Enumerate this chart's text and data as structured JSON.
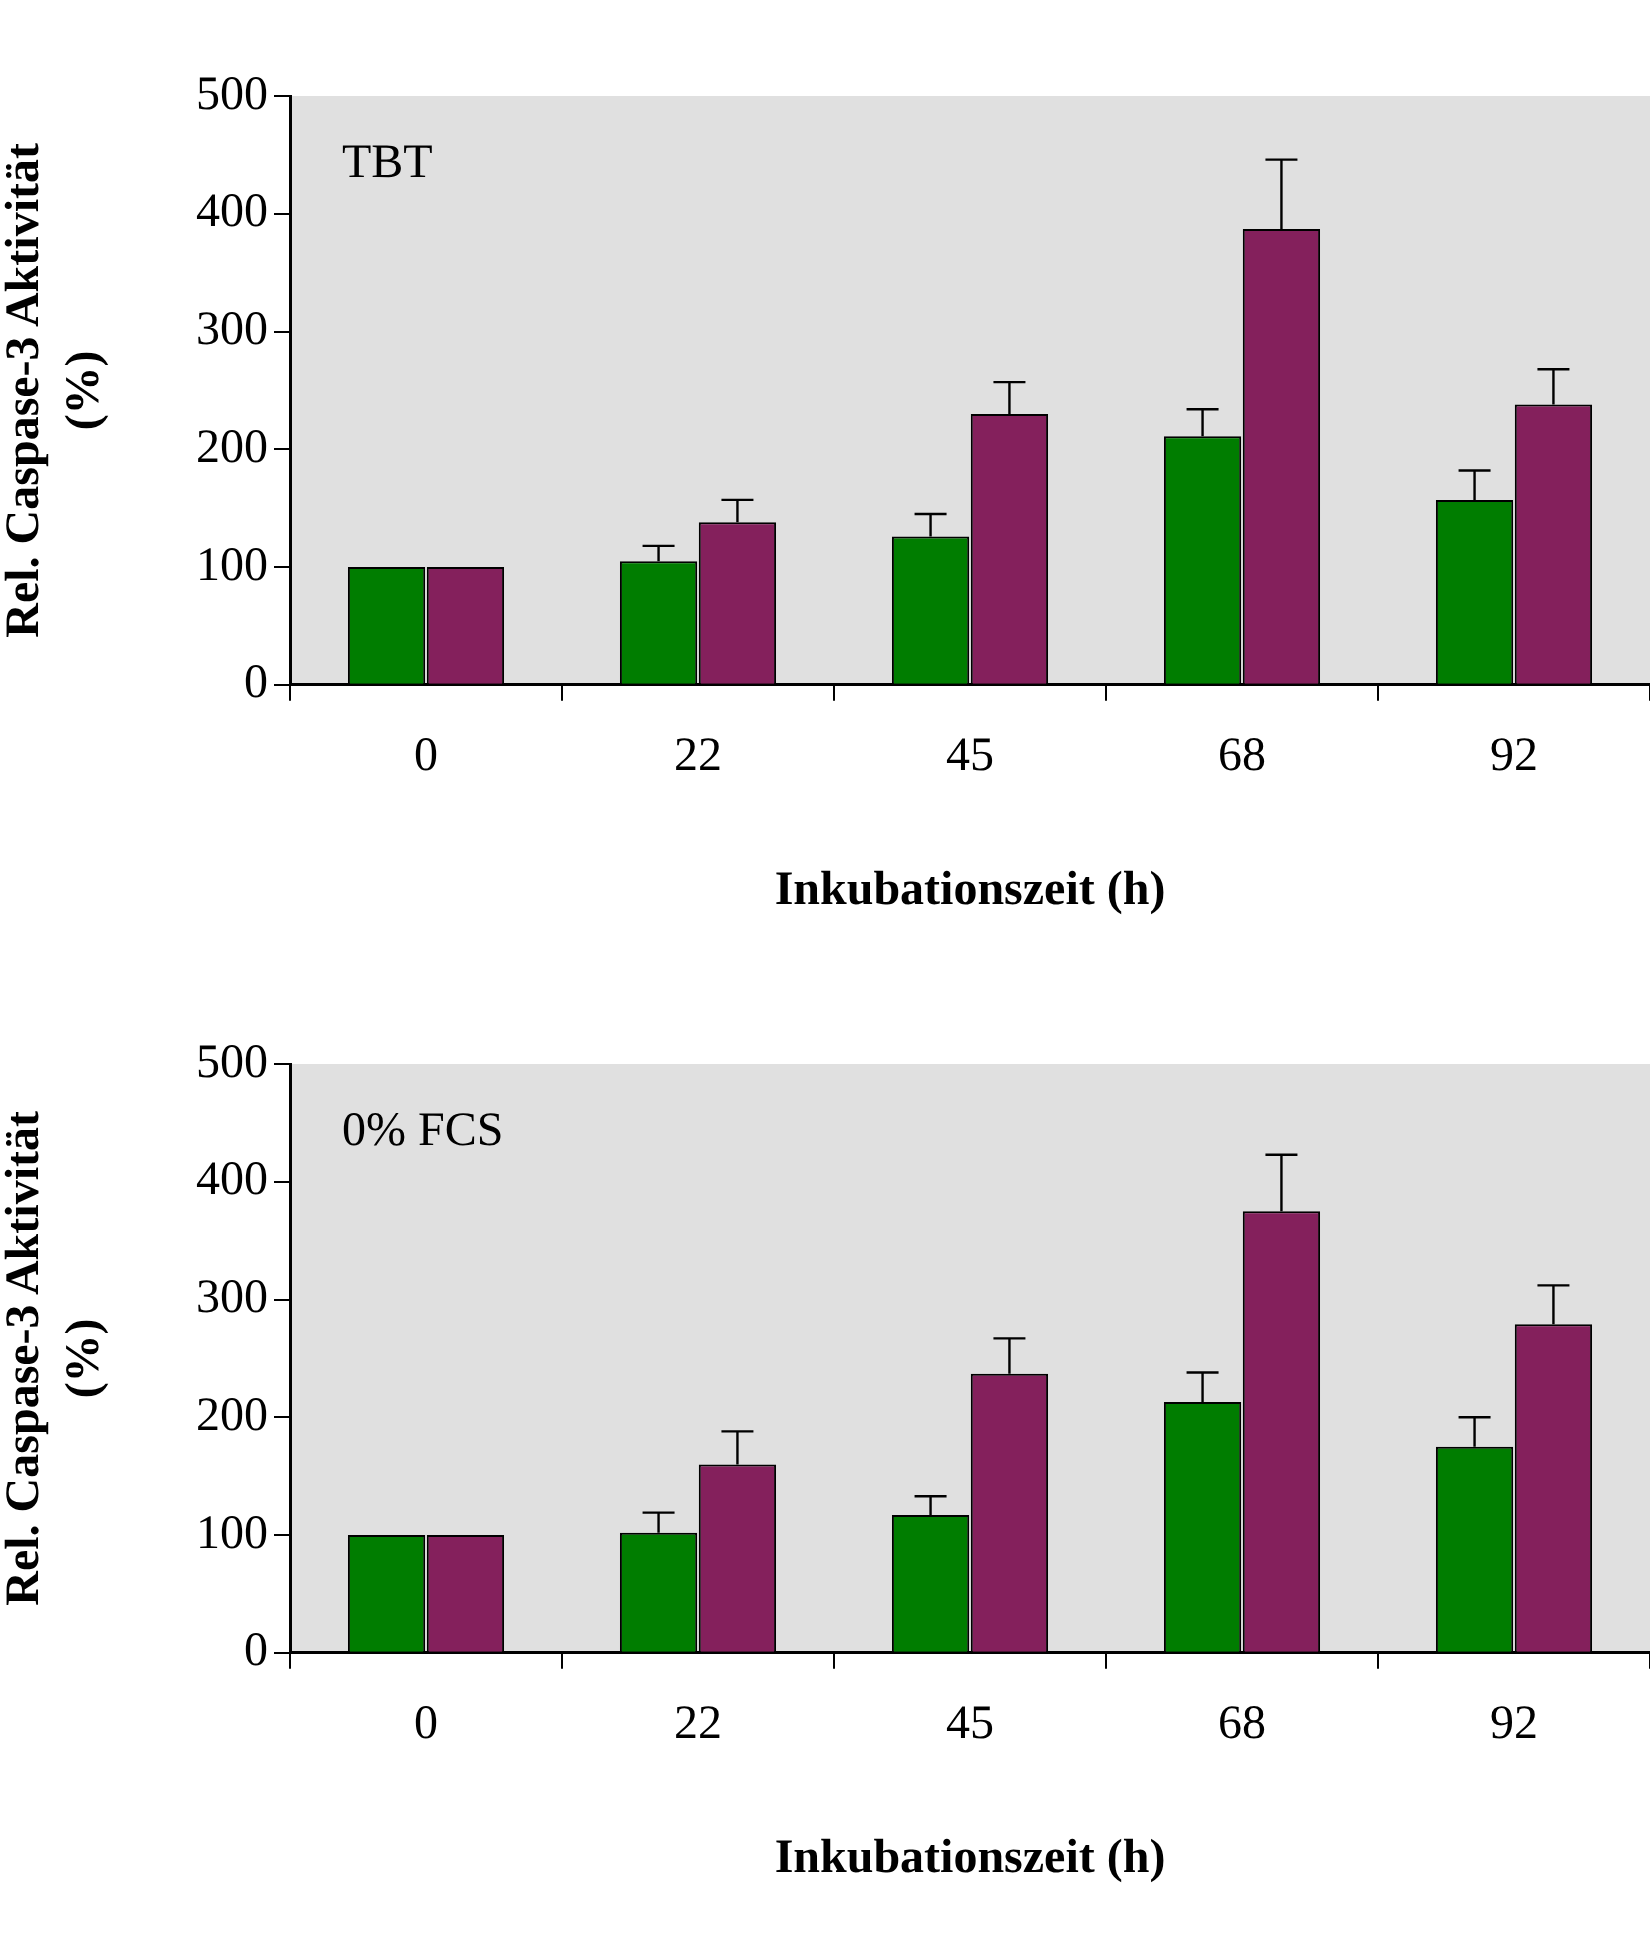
{
  "chart_data": [
    {
      "type": "bar",
      "annotations": [
        "TBT"
      ],
      "xlabel": "Inkubationszeit (h)",
      "ylabel": "Rel. Caspase-3 Aktivität\n(%)",
      "categories": [
        "0",
        "22",
        "45",
        "68",
        "92"
      ],
      "series": [
        {
          "color": "#007d00",
          "values": [
            100,
            105,
            126,
            211,
            157
          ],
          "errors": [
            null,
            [
              105,
              118
            ],
            [
              126,
              145
            ],
            [
              211,
              234
            ],
            [
              157,
              182
            ]
          ]
        },
        {
          "color": "#84205c",
          "values": [
            100,
            138,
            230,
            387,
            238
          ],
          "errors": [
            null,
            [
              138,
              157
            ],
            [
              230,
              257
            ],
            [
              387,
              446
            ],
            [
              238,
              268
            ]
          ]
        }
      ],
      "ylim": [
        0,
        500
      ],
      "yticks": [
        0,
        100,
        200,
        300,
        400,
        500
      ],
      "grid": false,
      "legend": false
    },
    {
      "type": "bar",
      "annotations": [
        "0% FCS"
      ],
      "xlabel": "Inkubationszeit (h)",
      "ylabel": "Rel. Caspase-3 Aktivität\n(%)",
      "categories": [
        "0",
        "22",
        "45",
        "68",
        "92"
      ],
      "series": [
        {
          "color": "#007d00",
          "values": [
            100,
            102,
            117,
            213,
            175
          ],
          "errors": [
            null,
            [
              102,
              119
            ],
            [
              117,
              133
            ],
            [
              213,
              238
            ],
            [
              175,
              200
            ]
          ]
        },
        {
          "color": "#84205c",
          "values": [
            100,
            160,
            237,
            375,
            279
          ],
          "errors": [
            null,
            [
              160,
              188
            ],
            [
              237,
              267
            ],
            [
              375,
              423
            ],
            [
              279,
              312
            ]
          ]
        }
      ],
      "ylim": [
        0,
        500
      ],
      "yticks": [
        0,
        100,
        200,
        300,
        400,
        500
      ],
      "grid": false,
      "legend": false
    }
  ]
}
